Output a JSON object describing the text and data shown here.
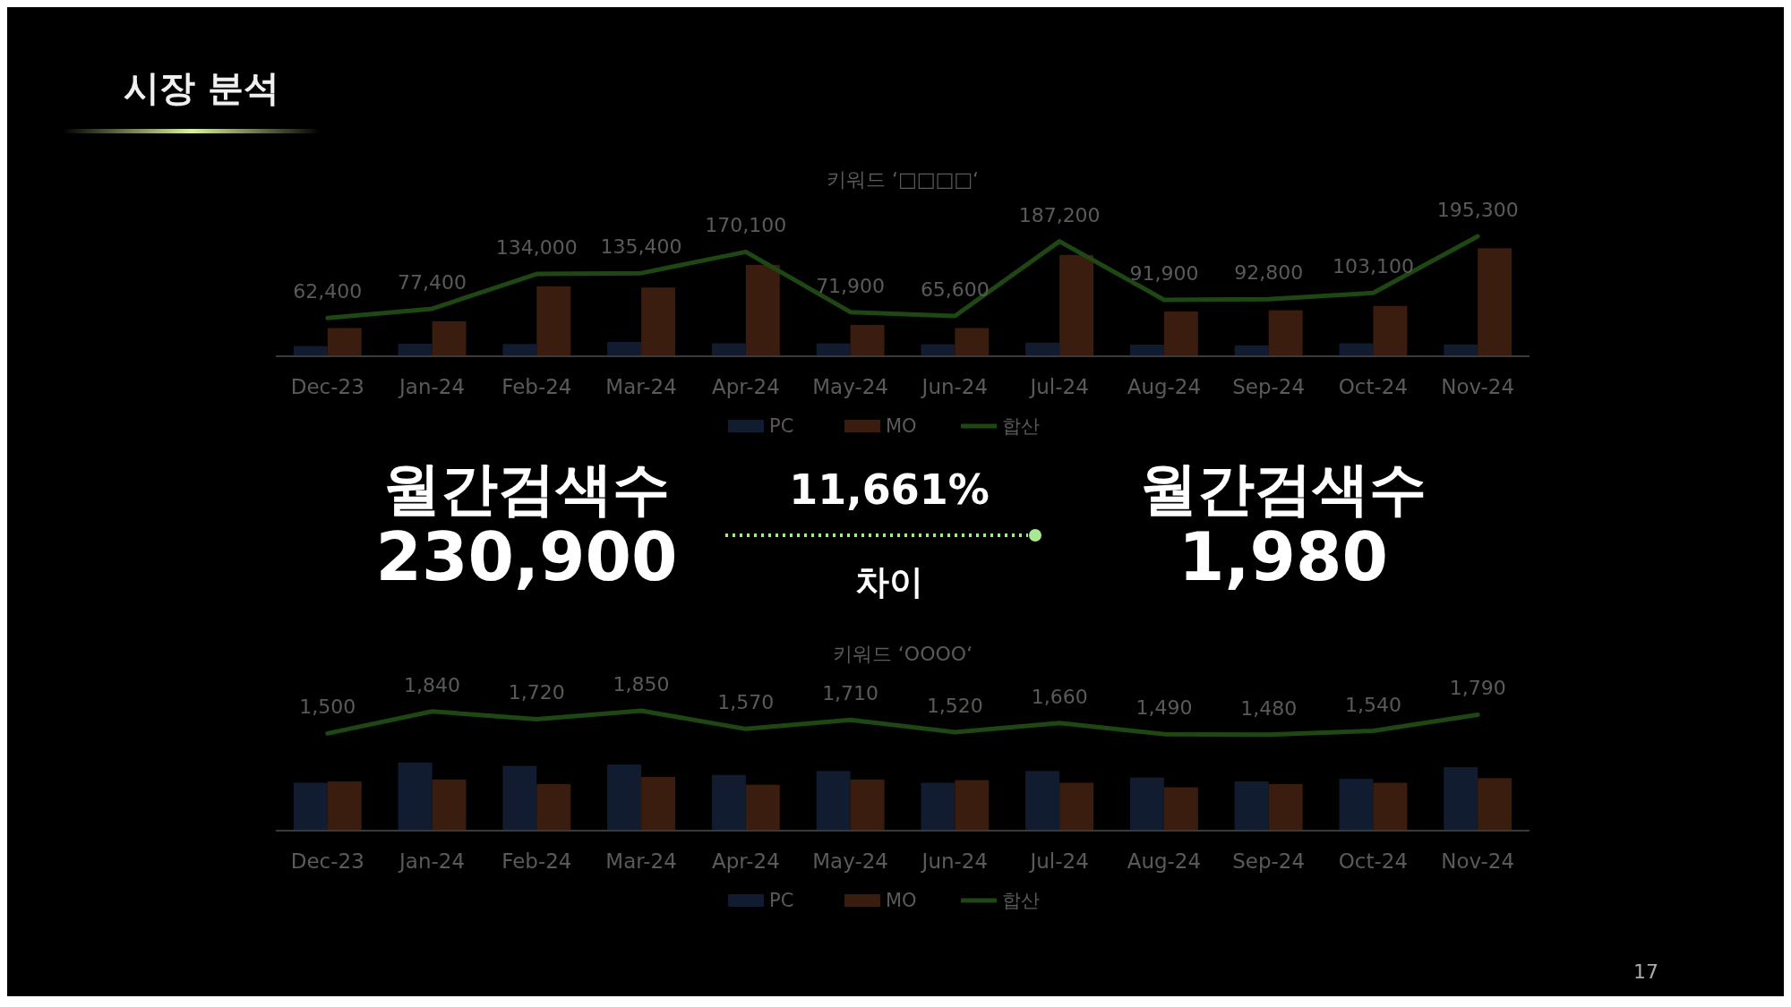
{
  "chart_data": [
    {
      "type": "bar",
      "title": "키워드 ‘□□□□‘",
      "categories": [
        "Dec-23",
        "Jan-24",
        "Feb-24",
        "Mar-24",
        "Apr-24",
        "May-24",
        "Jun-24",
        "Jul-24",
        "Aug-24",
        "Sep-24",
        "Oct-24",
        "Nov-24"
      ],
      "tick_labels": "x",
      "legend": "bottom",
      "series": [
        {
          "name": "PC",
          "color": "#111c30",
          "values": [
            16400,
            20400,
            20000,
            23400,
            21100,
            20900,
            19600,
            22200,
            18900,
            17800,
            21100,
            19300
          ]
        },
        {
          "name": "MO",
          "color": "#3a1d0e",
          "values": [
            46000,
            57000,
            114000,
            112000,
            149000,
            51000,
            46000,
            165000,
            73000,
            75000,
            82000,
            176000
          ]
        },
        {
          "name": "합산",
          "type": "line",
          "color": "#1f4713",
          "values": [
            62400,
            77400,
            134000,
            135400,
            170100,
            71900,
            65600,
            187200,
            91900,
            92800,
            103100,
            195300
          ],
          "value_labels": [
            "62,400",
            "77,400",
            "134,000",
            "135,400",
            "170,100",
            "71,900",
            "65,600",
            "187,200",
            "91,900",
            "92,800",
            "103,100",
            "195,300"
          ]
        }
      ]
    },
    {
      "type": "bar",
      "title": "키워드 ‘OOOO‘",
      "categories": [
        "Dec-23",
        "Jan-24",
        "Feb-24",
        "Mar-24",
        "Apr-24",
        "May-24",
        "Jun-24",
        "Jul-24",
        "Aug-24",
        "Sep-24",
        "Oct-24",
        "Nov-24"
      ],
      "tick_labels": "x",
      "legend": "bottom",
      "series": [
        {
          "name": "PC",
          "color": "#111c30",
          "values": [
            740,
            1050,
            1000,
            1020,
            860,
            920,
            740,
            920,
            820,
            760,
            800,
            980
          ]
        },
        {
          "name": "MO",
          "color": "#3a1d0e",
          "values": [
            760,
            790,
            720,
            830,
            710,
            790,
            780,
            740,
            670,
            720,
            740,
            810
          ]
        },
        {
          "name": "합산",
          "type": "line",
          "color": "#1f4713",
          "values": [
            1500,
            1840,
            1720,
            1850,
            1570,
            1710,
            1520,
            1660,
            1490,
            1480,
            1540,
            1790
          ],
          "value_labels": [
            "1,500",
            "1,840",
            "1,720",
            "1,850",
            "1,570",
            "1,710",
            "1,520",
            "1,660",
            "1,490",
            "1,480",
            "1,540",
            "1,790"
          ]
        }
      ]
    },
    {
      "type": "other",
      "title": "시장 분석",
      "annotations": [
        "월간검색수",
        "230,900",
        "11,661%",
        "차이",
        "월간검색수",
        "1,980",
        "17"
      ]
    }
  ]
}
